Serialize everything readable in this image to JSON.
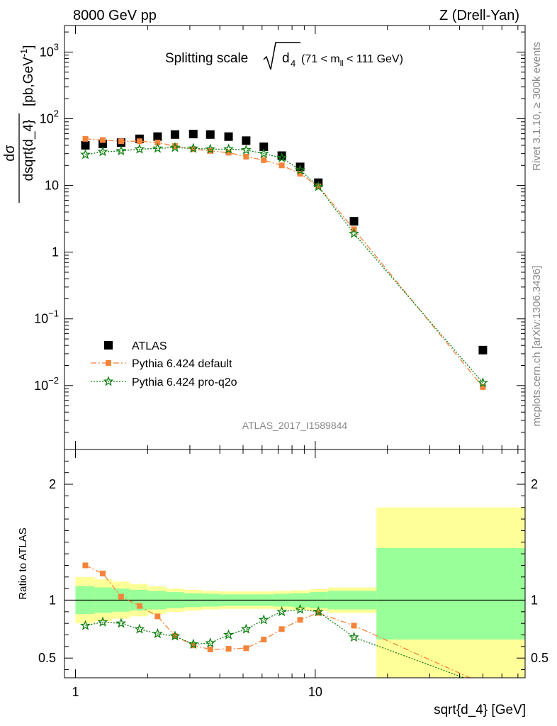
{
  "header": {
    "left": "8000 GeV pp",
    "right": "Z (Drell-Yan)"
  },
  "side_labels": {
    "rivet": "Rivet 3.1.10, ≥ 300k events",
    "mcplots": "mcplots.cern.ch [arXiv:1306.3436]"
  },
  "analysis_id": "ATLAS_2017_I1589844",
  "colors": {
    "atlas": "#000000",
    "pythia_default": "#f5843b",
    "pythia_proq2o": "#108010",
    "band_inner": "#99ff99",
    "band_outer": "#ffff99"
  },
  "chart_data": [
    {
      "type": "scatter",
      "panel": "main",
      "title": {
        "prefix": "Splitting scale ",
        "radicand": "d",
        "radicand_sub": "4",
        "cut_open": "(71 < m",
        "cut_sub": "ll",
        "cut_close": " < 111 GeV)"
      },
      "ylabel": {
        "num": "dσ",
        "den": "dsqrt{d_4}",
        "units_pre": " [pb,GeV",
        "units_exp": "-1",
        "units_post": "]"
      },
      "xscale": "log",
      "yscale": "log",
      "xlim": [
        0.9,
        75
      ],
      "ylim": [
        0.0011,
        2500
      ],
      "yticks": [
        {
          "value": 0.01,
          "base": "10",
          "exp": "−2"
        },
        {
          "value": 0.1,
          "base": "10",
          "exp": "−1"
        },
        {
          "value": 1,
          "base": "1",
          "exp": ""
        },
        {
          "value": 10,
          "base": "10",
          "exp": ""
        },
        {
          "value": 100,
          "base": "10",
          "exp": "2"
        },
        {
          "value": 1000,
          "base": "10",
          "exp": "3"
        }
      ],
      "legend": {
        "placement": "bottom-left",
        "entries": [
          "ATLAS",
          "Pythia 6.424 default",
          "Pythia 6.424 pro-q2o"
        ]
      },
      "series": [
        {
          "name": "ATLAS",
          "marker": "square",
          "x": [
            1.1,
            1.3,
            1.55,
            1.85,
            2.2,
            2.6,
            3.1,
            3.65,
            4.35,
            5.15,
            6.1,
            7.25,
            8.65,
            10.3,
            14.5,
            50
          ],
          "y": [
            40,
            42,
            44,
            50,
            54,
            58,
            59,
            58,
            54,
            47,
            38,
            28,
            19,
            11,
            2.9,
            0.034
          ]
        },
        {
          "name": "Pythia 6.424 default",
          "marker": "square-small",
          "line": "dash-dot",
          "x": [
            1.1,
            1.3,
            1.55,
            1.85,
            2.2,
            2.6,
            3.1,
            3.65,
            4.35,
            5.15,
            6.1,
            7.25,
            8.65,
            10.3,
            14.5,
            50
          ],
          "y": [
            50,
            48,
            46,
            46,
            44,
            39,
            35,
            33,
            31,
            27,
            24,
            20,
            15,
            9.7,
            2.2,
            0.0095
          ]
        },
        {
          "name": "Pythia 6.424 pro-q2o",
          "marker": "star",
          "line": "dotted",
          "x": [
            1.1,
            1.3,
            1.55,
            1.85,
            2.2,
            2.6,
            3.1,
            3.65,
            4.35,
            5.15,
            6.1,
            7.25,
            8.65,
            10.3,
            14.5,
            50
          ],
          "y": [
            29,
            32,
            33,
            35,
            36,
            37,
            36,
            35,
            35,
            34,
            30,
            26,
            17,
            9.6,
            1.9,
            0.011
          ]
        }
      ]
    },
    {
      "type": "line",
      "panel": "ratio",
      "ylabel": "Ratio to ATLAS",
      "xlabel": "sqrt{d_4} [GeV]",
      "xscale": "log",
      "xlim": [
        0.9,
        75
      ],
      "ylim": [
        0.33,
        2.3
      ],
      "yticks": [
        {
          "value": 0.5,
          "label": "0.5"
        },
        {
          "value": 1,
          "label": "1"
        },
        {
          "value": 2,
          "label": "2"
        }
      ],
      "xticks": [
        {
          "value": 1,
          "label": "1"
        },
        {
          "value": 10,
          "label": "10"
        }
      ],
      "bands": {
        "edges": [
          1,
          1.2,
          1.42,
          1.68,
          2.0,
          2.38,
          2.83,
          3.36,
          4.0,
          4.76,
          5.66,
          6.73,
          8.0,
          9.51,
          11.3,
          18.0,
          75
        ],
        "inner_lo": [
          0.88,
          0.89,
          0.9,
          0.91,
          0.92,
          0.93,
          0.94,
          0.945,
          0.95,
          0.95,
          0.95,
          0.945,
          0.94,
          0.93,
          0.92,
          0.66
        ],
        "inner_hi": [
          1.12,
          1.11,
          1.1,
          1.09,
          1.08,
          1.07,
          1.06,
          1.055,
          1.05,
          1.05,
          1.05,
          1.055,
          1.06,
          1.07,
          1.08,
          1.45
        ],
        "outer_lo": [
          0.8,
          0.82,
          0.84,
          0.86,
          0.88,
          0.9,
          0.91,
          0.92,
          0.925,
          0.925,
          0.925,
          0.92,
          0.915,
          0.905,
          0.89,
          0.33
        ],
        "outer_hi": [
          1.2,
          1.18,
          1.16,
          1.14,
          1.12,
          1.1,
          1.09,
          1.08,
          1.075,
          1.075,
          1.075,
          1.08,
          1.085,
          1.095,
          1.11,
          1.8
        ]
      },
      "series": [
        {
          "name": "Pythia 6.424 default",
          "marker": "square-small",
          "line": "dash-dot",
          "x": [
            1.1,
            1.3,
            1.55,
            1.85,
            2.2,
            2.6,
            3.1,
            3.65,
            4.35,
            5.15,
            6.1,
            7.25,
            8.65,
            10.3,
            14.5,
            50
          ],
          "y": [
            1.3,
            1.23,
            1.03,
            0.95,
            0.86,
            0.69,
            0.61,
            0.575,
            0.58,
            0.585,
            0.66,
            0.75,
            0.83,
            0.89,
            0.78,
            0.28
          ]
        },
        {
          "name": "Pythia 6.424 pro-q2o",
          "marker": "star",
          "line": "dotted",
          "x": [
            1.1,
            1.3,
            1.55,
            1.85,
            2.2,
            2.6,
            3.1,
            3.65,
            4.35,
            5.15,
            6.1,
            7.25,
            8.65,
            10.3,
            14.5,
            50
          ],
          "y": [
            0.78,
            0.81,
            0.8,
            0.75,
            0.71,
            0.69,
            0.62,
            0.63,
            0.7,
            0.75,
            0.83,
            0.9,
            0.92,
            0.9,
            0.68,
            0.27
          ]
        }
      ]
    }
  ]
}
